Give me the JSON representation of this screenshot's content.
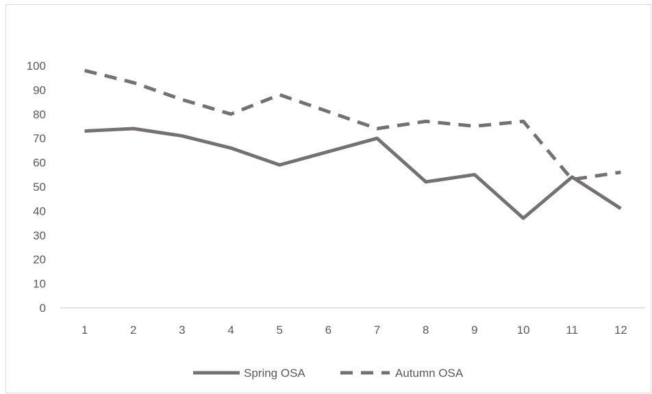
{
  "chart_data": {
    "type": "line",
    "title": "",
    "xlabel": "",
    "ylabel": "",
    "categories": [
      "1",
      "2",
      "3",
      "4",
      "5",
      "6",
      "7",
      "8",
      "9",
      "10",
      "11",
      "12"
    ],
    "ylim": [
      0,
      100
    ],
    "y_ticks": [
      "0",
      "10",
      "20",
      "30",
      "40",
      "50",
      "60",
      "70",
      "80",
      "90",
      "100"
    ],
    "grid": false,
    "legend_position": "bottom",
    "series": [
      {
        "name": "Spring OSA",
        "style": "solid",
        "color": "#767171",
        "values": [
          73,
          74,
          71,
          66,
          59,
          64.5,
          70,
          52,
          55,
          37,
          54,
          41
        ]
      },
      {
        "name": "Autumn OSA",
        "style": "dashed",
        "color": "#767171",
        "values": [
          98,
          93,
          86,
          80,
          88,
          81,
          74,
          77,
          75,
          77,
          53,
          56
        ]
      }
    ]
  }
}
